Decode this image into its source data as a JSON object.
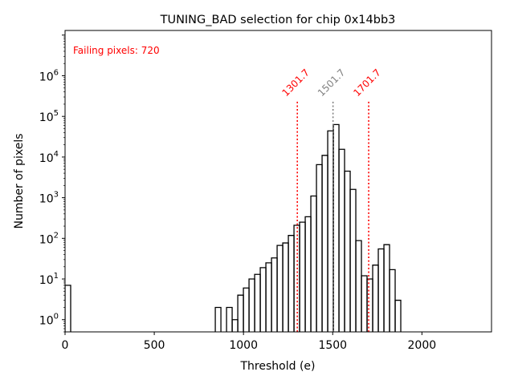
{
  "chart_data": {
    "type": "histogram",
    "title": "TUNING_BAD selection for chip 0x14bb3",
    "xlabel": "Threshold (e)",
    "ylabel": "Number of pixels",
    "xscale": "linear",
    "yscale": "log",
    "xlim": [
      0,
      2390
    ],
    "ylim": [
      0.5,
      13000000
    ],
    "xticks": [
      {
        "value": 0,
        "label": "0"
      },
      {
        "value": 500,
        "label": "500"
      },
      {
        "value": 1000,
        "label": "1000"
      },
      {
        "value": 1500,
        "label": "1500"
      },
      {
        "value": 2000,
        "label": "2000"
      }
    ],
    "yticks": [
      {
        "value": 1,
        "base": "10",
        "exp": "0"
      },
      {
        "value": 10,
        "base": "10",
        "exp": "1"
      },
      {
        "value": 100,
        "base": "10",
        "exp": "2"
      },
      {
        "value": 1000,
        "base": "10",
        "exp": "3"
      },
      {
        "value": 10000,
        "base": "10",
        "exp": "4"
      },
      {
        "value": 100000,
        "base": "10",
        "exp": "5"
      },
      {
        "value": 1000000,
        "base": "10",
        "exp": "6"
      }
    ],
    "grid": false,
    "bin_width": 31.5,
    "bins": [
      {
        "start": 0,
        "count": 7
      },
      {
        "start": 842,
        "count": 2
      },
      {
        "start": 873.5,
        "count": 0
      },
      {
        "start": 905,
        "count": 2
      },
      {
        "start": 936.5,
        "count": 1
      },
      {
        "start": 968,
        "count": 4
      },
      {
        "start": 999.5,
        "count": 6
      },
      {
        "start": 1031,
        "count": 10
      },
      {
        "start": 1062.5,
        "count": 13
      },
      {
        "start": 1094,
        "count": 19
      },
      {
        "start": 1125.5,
        "count": 25
      },
      {
        "start": 1157,
        "count": 33
      },
      {
        "start": 1188.5,
        "count": 67
      },
      {
        "start": 1220,
        "count": 77
      },
      {
        "start": 1251.5,
        "count": 118
      },
      {
        "start": 1283,
        "count": 210
      },
      {
        "start": 1314.5,
        "count": 250
      },
      {
        "start": 1346,
        "count": 340
      },
      {
        "start": 1377.5,
        "count": 1100
      },
      {
        "start": 1409,
        "count": 6500
      },
      {
        "start": 1440.5,
        "count": 11000
      },
      {
        "start": 1472,
        "count": 44000
      },
      {
        "start": 1503.5,
        "count": 63000
      },
      {
        "start": 1535,
        "count": 15500
      },
      {
        "start": 1566.5,
        "count": 4500
      },
      {
        "start": 1598,
        "count": 1600
      },
      {
        "start": 1629.5,
        "count": 88
      },
      {
        "start": 1661,
        "count": 12
      },
      {
        "start": 1692.5,
        "count": 10
      },
      {
        "start": 1724,
        "count": 22
      },
      {
        "start": 1755.5,
        "count": 55
      },
      {
        "start": 1787,
        "count": 70
      },
      {
        "start": 1818.5,
        "count": 17
      },
      {
        "start": 1850,
        "count": 3
      }
    ],
    "vlines": [
      {
        "x": 1301.7,
        "label": "1301.7",
        "color": "#ff0000",
        "style": "dotted"
      },
      {
        "x": 1501.7,
        "label": "1501.7",
        "color": "#808080",
        "style": "dotted"
      },
      {
        "x": 1701.7,
        "label": "1701.7",
        "color": "#ff0000",
        "style": "dotted"
      }
    ],
    "vline_top_value": 230000,
    "annotations": [
      {
        "text": "Failing pixels: 720",
        "color": "#ff0000",
        "position": "top-left"
      }
    ],
    "line_color": "#000000"
  }
}
